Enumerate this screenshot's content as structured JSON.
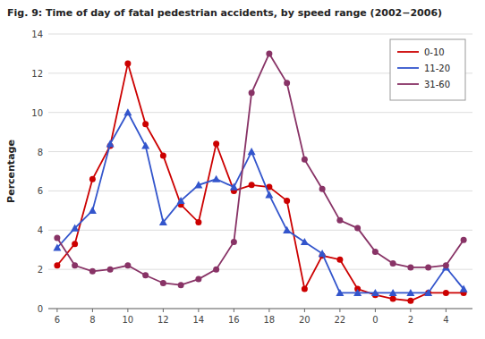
{
  "chart_data": {
    "type": "line",
    "title": "Fig. 9: Time of day of fatal pedestrian accidents, by speed range (2002−2006)",
    "y_label": "Percentage",
    "categories": [
      "6",
      null,
      "8",
      null,
      "10",
      null,
      "12",
      null,
      "14",
      null,
      "16",
      null,
      "18",
      null,
      "20",
      null,
      "22",
      null,
      "0",
      null,
      "2",
      null,
      "4",
      null
    ],
    "series": [
      {
        "name": "0-10",
        "color": "#cc0000",
        "marker": "circle",
        "values": [
          2.2,
          3.3,
          6.6,
          8.3,
          12.5,
          9.4,
          7.8,
          5.3,
          4.4,
          8.4,
          6.0,
          6.3,
          6.2,
          5.5,
          1.0,
          2.7,
          2.5,
          1.0,
          0.7,
          0.5,
          0.4,
          0.8,
          0.8,
          0.8
        ]
      },
      {
        "name": "11-20",
        "color": "#3355cc",
        "marker": "triangle",
        "values": [
          3.1,
          4.1,
          5.0,
          8.4,
          10.0,
          8.3,
          4.4,
          5.5,
          6.3,
          6.6,
          6.2,
          8.0,
          5.8,
          4.0,
          3.4,
          2.8,
          0.8,
          0.8,
          0.8,
          0.8,
          0.8,
          0.8,
          2.1,
          1.0
        ]
      },
      {
        "name": "31-60",
        "color": "#883366",
        "marker": "circle",
        "values": [
          3.6,
          2.2,
          1.9,
          2.0,
          2.2,
          1.7,
          1.3,
          1.2,
          1.5,
          2.0,
          3.4,
          11.0,
          13.0,
          11.5,
          7.6,
          6.1,
          4.5,
          4.1,
          2.9,
          2.3,
          2.1,
          2.1,
          2.2,
          3.5
        ]
      }
    ],
    "ylim": [
      0,
      14
    ],
    "yticks": [
      0,
      2,
      4,
      6,
      8,
      10,
      12,
      14
    ],
    "grid": true,
    "legend": "upper right"
  }
}
